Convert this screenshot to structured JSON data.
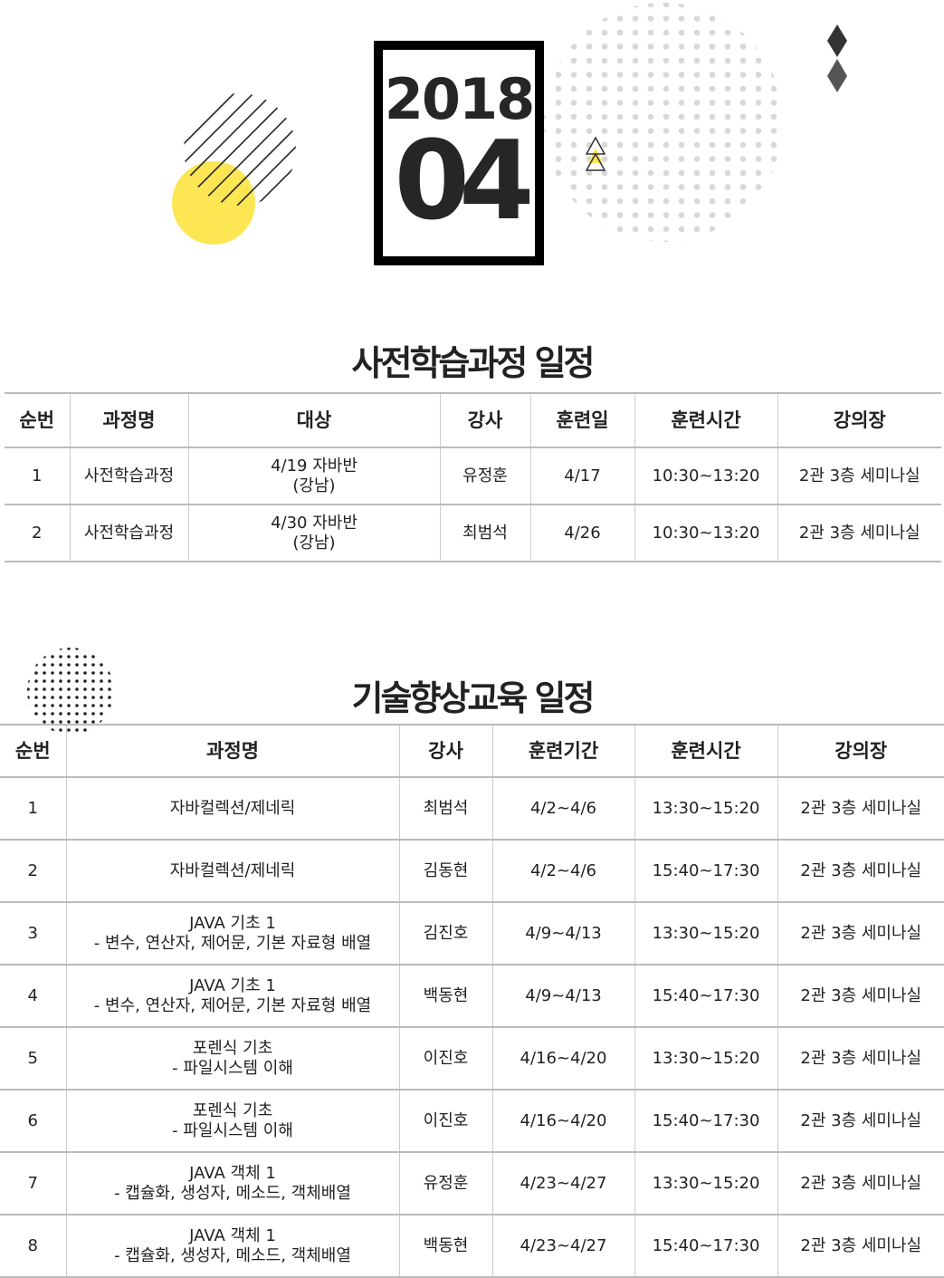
{
  "header": {
    "year": "2018",
    "month": "04",
    "colors": {
      "accent_yellow": "#fde654",
      "dots": "#d8d8d8"
    }
  },
  "pre_course": {
    "title": "사전학습과정 일정",
    "columns": [
      "순번",
      "과정명",
      "대상",
      "강사",
      "훈련일",
      "훈련시간",
      "강의장"
    ],
    "rows": [
      [
        "1",
        "사전학습과정",
        "4/19 자바반\n(강남)",
        "유정훈",
        "4/17",
        "10:30~13:20",
        "2관 3층 세미나실"
      ],
      [
        "2",
        "사전학습과정",
        "4/30  자바반\n(강남)",
        "최범석",
        "4/26",
        "10:30~13:20",
        "2관 3층 세미나실"
      ]
    ]
  },
  "tech_course": {
    "title": "기술향상교육 일정",
    "columns": [
      "순번",
      "과정명",
      "강사",
      "훈련기간",
      "훈련시간",
      "강의장"
    ],
    "rows": [
      [
        "1",
        "자바컬렉션/제네릭",
        "최범석",
        "4/2~4/6",
        "13:30~15:20",
        "2관 3층 세미나실"
      ],
      [
        "2",
        "자바컬렉션/제네릭",
        "김동현",
        "4/2~4/6",
        "15:40~17:30",
        "2관 3층 세미나실"
      ],
      [
        "3",
        "JAVA 기초 1\n- 변수, 연산자, 제어문, 기본 자료형 배열",
        "김진호",
        "4/9~4/13",
        "13:30~15:20",
        "2관 3층 세미나실"
      ],
      [
        "4",
        "JAVA 기초 1\n- 변수, 연산자, 제어문, 기본 자료형 배열",
        "백동현",
        "4/9~4/13",
        "15:40~17:30",
        "2관 3층 세미나실"
      ],
      [
        "5",
        "포렌식 기초\n- 파일시스템 이해",
        "이진호",
        "4/16~4/20",
        "13:30~15:20",
        "2관 3층 세미나실"
      ],
      [
        "6",
        "포렌식 기초\n- 파일시스템 이해",
        "이진호",
        "4/16~4/20",
        "15:40~17:30",
        "2관 3층 세미나실"
      ],
      [
        "7",
        "JAVA 객체 1\n- 캡슐화, 생성자, 메소드, 객체배열",
        "유정훈",
        "4/23~4/27",
        "13:30~15:20",
        "2관 3층 세미나실"
      ],
      [
        "8",
        "JAVA 객체 1\n- 캡슐화, 생성자, 메소드, 객체배열",
        "백동현",
        "4/23~4/27",
        "15:40~17:30",
        "2관 3층 세미나실"
      ]
    ]
  }
}
